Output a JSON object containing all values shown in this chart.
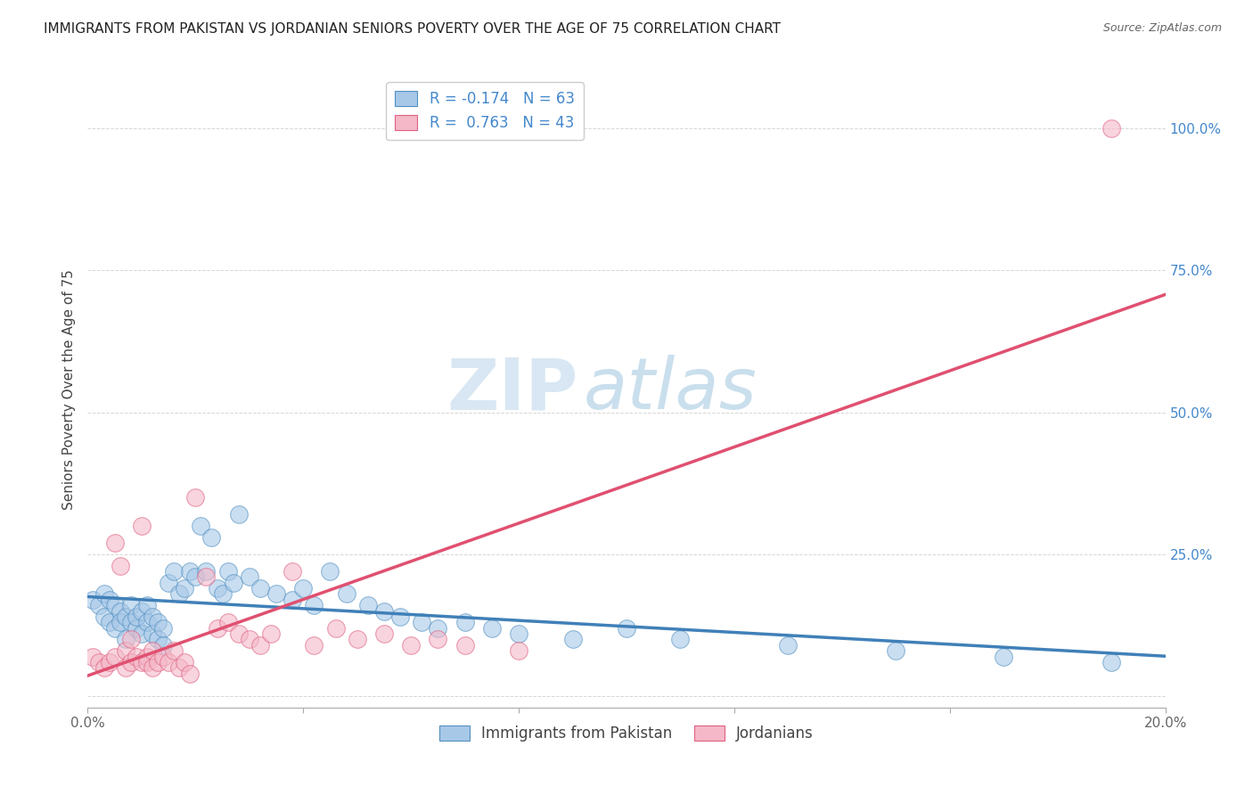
{
  "title": "IMMIGRANTS FROM PAKISTAN VS JORDANIAN SENIORS POVERTY OVER THE AGE OF 75 CORRELATION CHART",
  "source": "Source: ZipAtlas.com",
  "ylabel": "Seniors Poverty Over the Age of 75",
  "xlim": [
    0.0,
    0.2
  ],
  "ylim": [
    -0.02,
    1.1
  ],
  "yticks": [
    0.0,
    0.25,
    0.5,
    0.75,
    1.0
  ],
  "ytick_labels": [
    "",
    "25.0%",
    "50.0%",
    "75.0%",
    "100.0%"
  ],
  "xticks": [
    0.0,
    0.04,
    0.08,
    0.12,
    0.16,
    0.2
  ],
  "xtick_labels": [
    "0.0%",
    "",
    "",
    "",
    "",
    "20.0%"
  ],
  "blue_fill": "#a8c8e8",
  "pink_fill": "#f4b8c8",
  "blue_edge": "#5090c0",
  "pink_edge": "#e06080",
  "blue_line_color": "#4080b8",
  "pink_line_color": "#e05070",
  "blue_R": -0.174,
  "blue_N": 63,
  "pink_R": 0.763,
  "pink_N": 43,
  "legend_label_blue": "Immigrants from Pakistan",
  "legend_label_pink": "Jordanians",
  "blue_scatter_x": [
    0.001,
    0.002,
    0.003,
    0.003,
    0.004,
    0.004,
    0.005,
    0.005,
    0.006,
    0.006,
    0.007,
    0.007,
    0.008,
    0.008,
    0.009,
    0.009,
    0.01,
    0.01,
    0.011,
    0.011,
    0.012,
    0.012,
    0.013,
    0.013,
    0.014,
    0.014,
    0.015,
    0.016,
    0.017,
    0.018,
    0.019,
    0.02,
    0.021,
    0.022,
    0.023,
    0.024,
    0.025,
    0.026,
    0.027,
    0.028,
    0.03,
    0.032,
    0.035,
    0.038,
    0.04,
    0.042,
    0.045,
    0.048,
    0.052,
    0.055,
    0.058,
    0.062,
    0.065,
    0.07,
    0.075,
    0.08,
    0.09,
    0.1,
    0.11,
    0.13,
    0.15,
    0.17,
    0.19
  ],
  "blue_scatter_y": [
    0.17,
    0.16,
    0.14,
    0.18,
    0.13,
    0.17,
    0.16,
    0.12,
    0.15,
    0.13,
    0.14,
    0.1,
    0.13,
    0.16,
    0.12,
    0.14,
    0.15,
    0.11,
    0.16,
    0.13,
    0.14,
    0.11,
    0.13,
    0.1,
    0.12,
    0.09,
    0.2,
    0.22,
    0.18,
    0.19,
    0.22,
    0.21,
    0.3,
    0.22,
    0.28,
    0.19,
    0.18,
    0.22,
    0.2,
    0.32,
    0.21,
    0.19,
    0.18,
    0.17,
    0.19,
    0.16,
    0.22,
    0.18,
    0.16,
    0.15,
    0.14,
    0.13,
    0.12,
    0.13,
    0.12,
    0.11,
    0.1,
    0.12,
    0.1,
    0.09,
    0.08,
    0.07,
    0.06
  ],
  "pink_scatter_x": [
    0.001,
    0.002,
    0.003,
    0.004,
    0.005,
    0.005,
    0.006,
    0.007,
    0.007,
    0.008,
    0.008,
    0.009,
    0.01,
    0.01,
    0.011,
    0.011,
    0.012,
    0.012,
    0.013,
    0.014,
    0.015,
    0.016,
    0.017,
    0.018,
    0.019,
    0.02,
    0.022,
    0.024,
    0.026,
    0.028,
    0.03,
    0.032,
    0.034,
    0.038,
    0.042,
    0.046,
    0.05,
    0.055,
    0.06,
    0.065,
    0.07,
    0.08,
    0.19
  ],
  "pink_scatter_y": [
    0.07,
    0.06,
    0.05,
    0.06,
    0.27,
    0.07,
    0.23,
    0.08,
    0.05,
    0.1,
    0.06,
    0.07,
    0.06,
    0.3,
    0.07,
    0.06,
    0.08,
    0.05,
    0.06,
    0.07,
    0.06,
    0.08,
    0.05,
    0.06,
    0.04,
    0.35,
    0.21,
    0.12,
    0.13,
    0.11,
    0.1,
    0.09,
    0.11,
    0.22,
    0.09,
    0.12,
    0.1,
    0.11,
    0.09,
    0.1,
    0.09,
    0.08,
    1.0
  ],
  "watermark_zip": "ZIP",
  "watermark_atlas": "atlas",
  "background_color": "#ffffff",
  "grid_color": "#cccccc",
  "title_fontsize": 11,
  "label_fontsize": 11,
  "tick_fontsize": 11,
  "right_tick_color": "#4488cc"
}
